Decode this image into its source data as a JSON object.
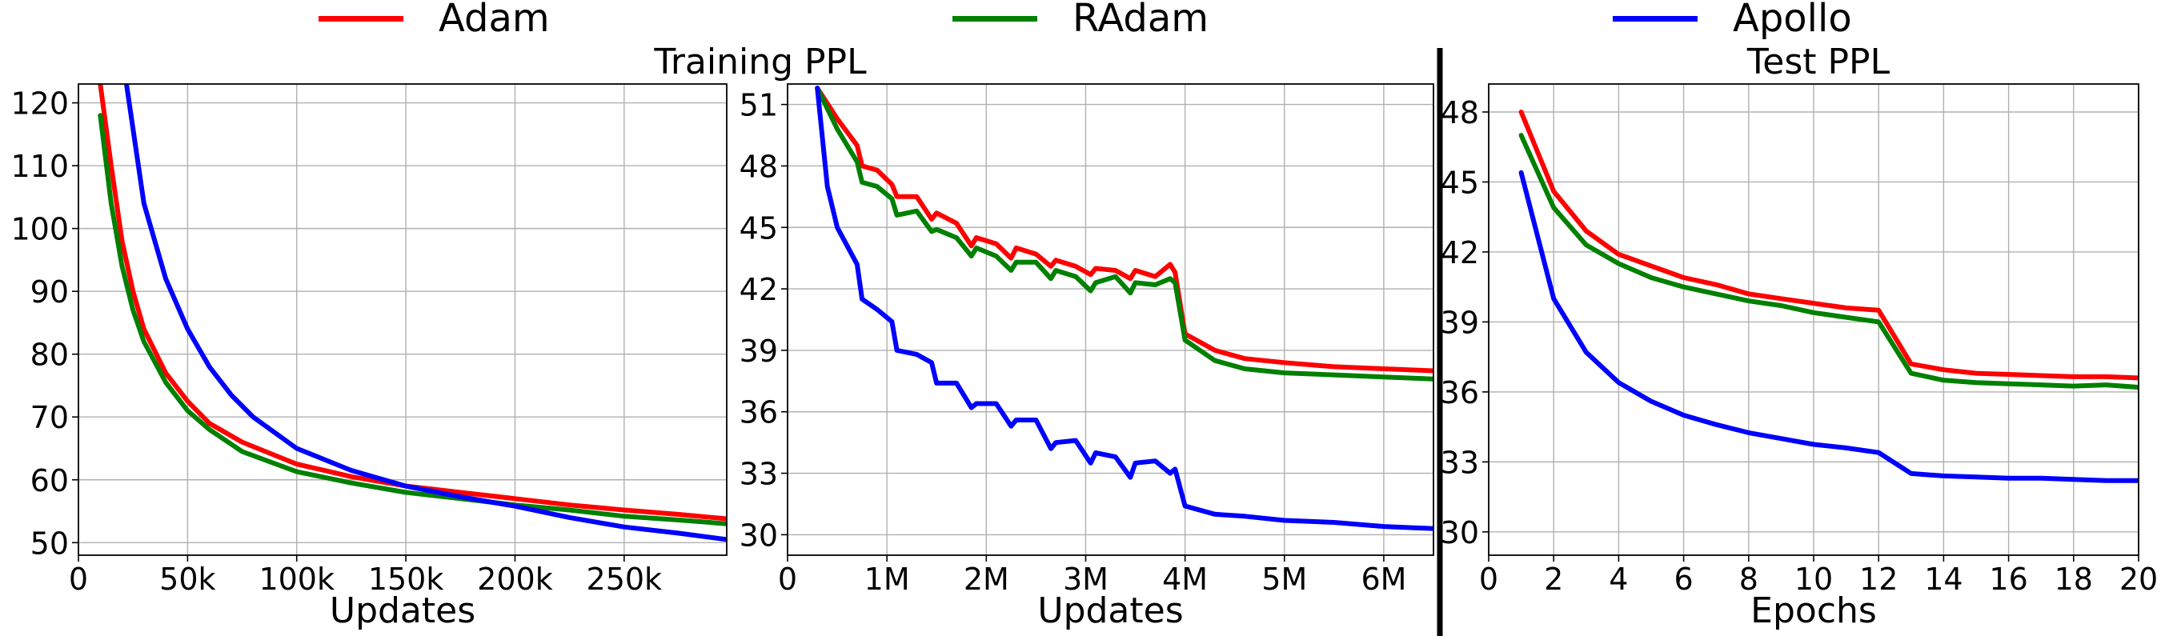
{
  "legend": {
    "items": [
      {
        "label": "Adam",
        "color": "#ff0000"
      },
      {
        "label": "RAdam",
        "color": "#008000"
      },
      {
        "label": "Apollo",
        "color": "#0000ff"
      }
    ]
  },
  "section_titles": {
    "training": "Training PPL",
    "test": "Test PPL"
  },
  "chart_data": [
    {
      "type": "line",
      "title": "",
      "xlabel": "Updates",
      "ylabel": "",
      "xlim": [
        0,
        297000
      ],
      "ylim": [
        48,
        123
      ],
      "xticks": [
        0,
        50000,
        100000,
        150000,
        200000,
        250000
      ],
      "xtick_labels": [
        "0",
        "50k",
        "100k",
        "150k",
        "200k",
        "250k"
      ],
      "yticks": [
        50,
        60,
        70,
        80,
        90,
        100,
        110,
        120
      ],
      "ytick_labels": [
        "50",
        "60",
        "70",
        "80",
        "90",
        "100",
        "110",
        "120"
      ],
      "grid": true,
      "series": [
        {
          "name": "Adam",
          "color": "#ff0000",
          "x": [
            10000,
            15000,
            20000,
            25000,
            30000,
            40000,
            50000,
            60000,
            75000,
            100000,
            125000,
            150000,
            175000,
            200000,
            225000,
            250000,
            275000,
            297000
          ],
          "y": [
            123,
            110,
            98,
            90,
            84,
            77,
            72.5,
            69,
            66,
            62.5,
            60.5,
            59,
            58,
            57,
            56,
            55.2,
            54.5,
            53.8
          ]
        },
        {
          "name": "RAdam",
          "color": "#008000",
          "x": [
            10000,
            15000,
            20000,
            25000,
            30000,
            40000,
            50000,
            60000,
            75000,
            100000,
            125000,
            150000,
            175000,
            200000,
            225000,
            250000,
            275000,
            297000
          ],
          "y": [
            118,
            104,
            94,
            87,
            82,
            75.5,
            71,
            68,
            64.5,
            61.3,
            59.5,
            58,
            57,
            56,
            55.2,
            54.2,
            53.6,
            53
          ]
        },
        {
          "name": "Apollo",
          "color": "#0000ff",
          "x": [
            22000,
            30000,
            40000,
            50000,
            60000,
            70000,
            80000,
            100000,
            125000,
            150000,
            175000,
            200000,
            225000,
            250000,
            275000,
            297000
          ],
          "y": [
            123,
            104,
            92,
            84,
            78,
            73.5,
            70,
            65,
            61.5,
            59,
            57.3,
            55.8,
            54,
            52.5,
            51.5,
            50.5
          ]
        }
      ]
    },
    {
      "type": "line",
      "title": "",
      "xlabel": "Updates",
      "ylabel": "",
      "xlim": [
        0,
        6.5
      ],
      "ylim": [
        29,
        52
      ],
      "xticks": [
        0,
        1,
        2,
        3,
        4,
        5,
        6
      ],
      "xtick_labels": [
        "0",
        "1M",
        "2M",
        "3M",
        "4M",
        "5M",
        "6M"
      ],
      "yticks": [
        30,
        33,
        36,
        39,
        42,
        45,
        48,
        51
      ],
      "ytick_labels": [
        "30",
        "33",
        "36",
        "39",
        "42",
        "45",
        "48",
        "51"
      ],
      "grid": true,
      "series": [
        {
          "name": "Adam",
          "color": "#ff0000",
          "x": [
            0.3,
            0.5,
            0.7,
            0.75,
            0.9,
            1.05,
            1.1,
            1.3,
            1.45,
            1.5,
            1.7,
            1.85,
            1.9,
            2.1,
            2.25,
            2.3,
            2.5,
            2.65,
            2.7,
            2.9,
            3.05,
            3.1,
            3.3,
            3.45,
            3.5,
            3.7,
            3.85,
            3.9,
            4.0,
            4.3,
            4.6,
            5.0,
            5.5,
            6.0,
            6.5
          ],
          "y": [
            51.8,
            50.3,
            49.0,
            48.0,
            47.8,
            47.1,
            46.5,
            46.5,
            45.4,
            45.7,
            45.2,
            44.1,
            44.5,
            44.2,
            43.5,
            44.0,
            43.7,
            43.1,
            43.4,
            43.1,
            42.7,
            43.0,
            42.9,
            42.5,
            42.9,
            42.6,
            43.2,
            42.8,
            39.8,
            39.0,
            38.6,
            38.4,
            38.2,
            38.1,
            38.0
          ]
        },
        {
          "name": "RAdam",
          "color": "#008000",
          "x": [
            0.3,
            0.5,
            0.7,
            0.75,
            0.9,
            1.05,
            1.1,
            1.3,
            1.45,
            1.5,
            1.7,
            1.85,
            1.9,
            2.1,
            2.25,
            2.3,
            2.5,
            2.65,
            2.7,
            2.9,
            3.05,
            3.1,
            3.3,
            3.45,
            3.5,
            3.7,
            3.85,
            3.9,
            4.0,
            4.3,
            4.6,
            5.0,
            5.5,
            6.0,
            6.5
          ],
          "y": [
            51.8,
            49.8,
            48.2,
            47.2,
            47.0,
            46.4,
            45.6,
            45.8,
            44.8,
            44.9,
            44.5,
            43.6,
            44.0,
            43.6,
            42.9,
            43.3,
            43.3,
            42.5,
            42.9,
            42.6,
            41.9,
            42.3,
            42.6,
            41.8,
            42.3,
            42.2,
            42.5,
            42.3,
            39.5,
            38.5,
            38.1,
            37.9,
            37.8,
            37.7,
            37.6
          ]
        },
        {
          "name": "Apollo",
          "color": "#0000ff",
          "x": [
            0.3,
            0.4,
            0.5,
            0.7,
            0.75,
            0.9,
            1.05,
            1.1,
            1.3,
            1.45,
            1.5,
            1.7,
            1.85,
            1.9,
            2.1,
            2.25,
            2.3,
            2.5,
            2.65,
            2.7,
            2.9,
            3.05,
            3.1,
            3.3,
            3.45,
            3.5,
            3.7,
            3.85,
            3.9,
            4.0,
            4.3,
            4.6,
            5.0,
            5.5,
            6.0,
            6.5
          ],
          "y": [
            51.8,
            47.0,
            45.0,
            43.2,
            41.5,
            41.0,
            40.4,
            39.0,
            38.8,
            38.4,
            37.4,
            37.4,
            36.2,
            36.4,
            36.4,
            35.3,
            35.6,
            35.6,
            34.2,
            34.5,
            34.6,
            33.5,
            34.0,
            33.8,
            32.8,
            33.5,
            33.6,
            33.0,
            33.2,
            31.4,
            31.0,
            30.9,
            30.7,
            30.6,
            30.4,
            30.3
          ]
        }
      ]
    },
    {
      "type": "line",
      "title": "",
      "xlabel": "Epochs",
      "ylabel": "",
      "xlim": [
        0,
        20
      ],
      "ylim": [
        29,
        49.2
      ],
      "xticks": [
        0,
        2,
        4,
        6,
        8,
        10,
        12,
        14,
        16,
        18,
        20
      ],
      "xtick_labels": [
        "0",
        "2",
        "4",
        "6",
        "8",
        "10",
        "12",
        "14",
        "16",
        "18",
        "20"
      ],
      "yticks": [
        30,
        33,
        36,
        39,
        42,
        45,
        48
      ],
      "ytick_labels": [
        "30",
        "33",
        "36",
        "39",
        "42",
        "45",
        "48"
      ],
      "grid": true,
      "series": [
        {
          "name": "Adam",
          "color": "#ff0000",
          "x": [
            1,
            2,
            3,
            4,
            5,
            6,
            7,
            8,
            9,
            10,
            11,
            12,
            13,
            14,
            15,
            16,
            17,
            18,
            19,
            20
          ],
          "y": [
            48.0,
            44.6,
            42.9,
            41.9,
            41.4,
            40.9,
            40.6,
            40.2,
            40.0,
            39.8,
            39.6,
            39.5,
            37.2,
            36.95,
            36.8,
            36.75,
            36.7,
            36.65,
            36.65,
            36.6
          ]
        },
        {
          "name": "RAdam",
          "color": "#008000",
          "x": [
            1,
            2,
            3,
            4,
            5,
            6,
            7,
            8,
            9,
            10,
            11,
            12,
            13,
            14,
            15,
            16,
            17,
            18,
            19,
            20
          ],
          "y": [
            47.0,
            43.9,
            42.3,
            41.5,
            40.9,
            40.5,
            40.2,
            39.9,
            39.7,
            39.4,
            39.2,
            39.0,
            36.8,
            36.5,
            36.4,
            36.35,
            36.3,
            36.25,
            36.3,
            36.2
          ]
        },
        {
          "name": "Apollo",
          "color": "#0000ff",
          "x": [
            1,
            2,
            3,
            4,
            5,
            6,
            7,
            8,
            9,
            10,
            11,
            12,
            13,
            14,
            15,
            16,
            17,
            18,
            19,
            20
          ],
          "y": [
            45.4,
            40.0,
            37.7,
            36.4,
            35.6,
            35.0,
            34.6,
            34.25,
            34.0,
            33.75,
            33.6,
            33.4,
            32.5,
            32.4,
            32.35,
            32.3,
            32.3,
            32.25,
            32.2,
            32.2
          ]
        }
      ]
    }
  ]
}
